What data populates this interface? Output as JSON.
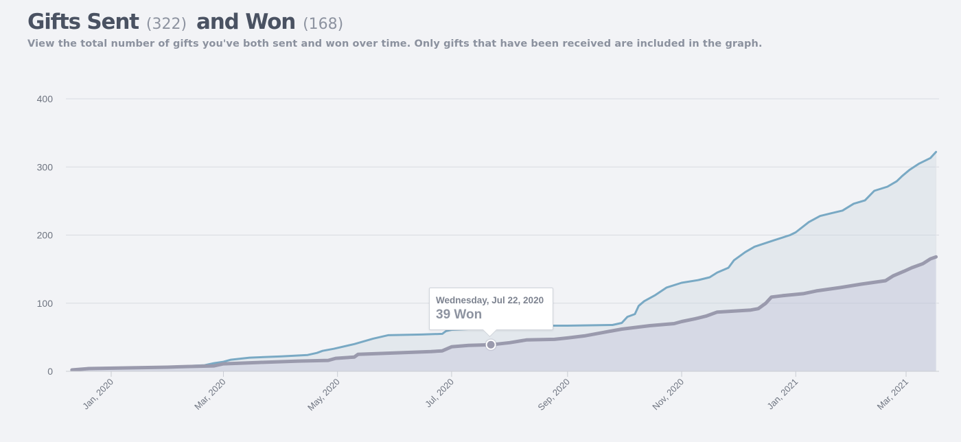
{
  "header": {
    "title_sent": "Gifts Sent",
    "sent_count": "(322)",
    "title_won": "and Won",
    "won_count": "(168)",
    "subtitle": "View the total number of gifts you've both sent and won over time. Only gifts that have been received are included in the graph."
  },
  "tooltip": {
    "date": "Wednesday, Jul 22, 2020",
    "value": "39 Won",
    "x": "2020-07-22",
    "y": 39
  },
  "colors": {
    "sent": "#79a9c4",
    "won": "#9a9aad",
    "grid": "#d8dbe1",
    "axis": "#c9ccd3"
  },
  "chart_data": {
    "type": "area",
    "x_axis": "date",
    "ylim": [
      0,
      400
    ],
    "y_ticks": [
      0,
      100,
      200,
      300,
      400
    ],
    "x_tick_labels": [
      {
        "date": "2020-01-01",
        "label": "Jan, 2020"
      },
      {
        "date": "2020-03-01",
        "label": "Mar, 2020"
      },
      {
        "date": "2020-05-01",
        "label": "May, 2020"
      },
      {
        "date": "2020-07-01",
        "label": "Jul, 2020"
      },
      {
        "date": "2020-09-01",
        "label": "Sep, 2020"
      },
      {
        "date": "2020-11-01",
        "label": "Nov, 2020"
      },
      {
        "date": "2021-01-01",
        "label": "Jan, 2021"
      },
      {
        "date": "2021-03-01",
        "label": "Mar, 2021"
      }
    ],
    "grid": true,
    "series": [
      {
        "key": "sent",
        "points": [
          [
            "2019-12-11",
            2
          ],
          [
            "2019-12-20",
            4
          ],
          [
            "2020-01-10",
            5
          ],
          [
            "2020-01-31",
            6
          ],
          [
            "2020-02-05",
            7
          ],
          [
            "2020-02-20",
            9
          ],
          [
            "2020-02-25",
            12
          ],
          [
            "2020-03-01",
            14
          ],
          [
            "2020-03-05",
            17
          ],
          [
            "2020-03-15",
            20
          ],
          [
            "2020-04-01",
            22
          ],
          [
            "2020-04-15",
            24
          ],
          [
            "2020-04-20",
            27
          ],
          [
            "2020-04-23",
            30
          ],
          [
            "2020-04-29",
            33
          ],
          [
            "2020-05-10",
            40
          ],
          [
            "2020-05-20",
            48
          ],
          [
            "2020-05-28",
            53
          ],
          [
            "2020-06-15",
            54
          ],
          [
            "2020-06-26",
            55
          ],
          [
            "2020-06-28",
            59
          ],
          [
            "2020-07-01",
            61
          ],
          [
            "2020-07-10",
            62
          ],
          [
            "2020-07-22",
            63
          ],
          [
            "2020-08-05",
            66
          ],
          [
            "2020-08-15",
            67
          ],
          [
            "2020-09-01",
            67
          ],
          [
            "2020-09-25",
            68
          ],
          [
            "2020-09-30",
            71
          ],
          [
            "2020-10-03",
            80
          ],
          [
            "2020-10-07",
            84
          ],
          [
            "2020-10-09",
            96
          ],
          [
            "2020-10-12",
            103
          ],
          [
            "2020-10-18",
            112
          ],
          [
            "2020-10-24",
            123
          ],
          [
            "2020-11-01",
            130
          ],
          [
            "2020-11-10",
            134
          ],
          [
            "2020-11-16",
            138
          ],
          [
            "2020-11-20",
            145
          ],
          [
            "2020-11-26",
            152
          ],
          [
            "2020-11-29",
            163
          ],
          [
            "2020-12-05",
            175
          ],
          [
            "2020-12-10",
            183
          ],
          [
            "2020-12-20",
            192
          ],
          [
            "2020-12-29",
            200
          ],
          [
            "2021-01-01",
            204
          ],
          [
            "2021-01-08",
            219
          ],
          [
            "2021-01-14",
            228
          ],
          [
            "2021-01-20",
            232
          ],
          [
            "2021-01-26",
            236
          ],
          [
            "2021-01-29",
            241
          ],
          [
            "2021-02-01",
            246
          ],
          [
            "2021-02-07",
            251
          ],
          [
            "2021-02-12",
            265
          ],
          [
            "2021-02-19",
            271
          ],
          [
            "2021-02-24",
            279
          ],
          [
            "2021-02-27",
            287
          ],
          [
            "2021-03-03",
            296
          ],
          [
            "2021-03-08",
            305
          ],
          [
            "2021-03-14",
            313
          ],
          [
            "2021-03-17",
            322
          ]
        ]
      },
      {
        "key": "won",
        "points": [
          [
            "2019-12-11",
            2
          ],
          [
            "2019-12-20",
            4
          ],
          [
            "2020-01-10",
            5
          ],
          [
            "2020-01-31",
            6
          ],
          [
            "2020-02-10",
            7
          ],
          [
            "2020-02-25",
            8
          ],
          [
            "2020-03-01",
            11
          ],
          [
            "2020-03-20",
            13
          ],
          [
            "2020-04-10",
            15
          ],
          [
            "2020-04-26",
            16
          ],
          [
            "2020-04-30",
            19
          ],
          [
            "2020-05-10",
            21
          ],
          [
            "2020-05-12",
            25
          ],
          [
            "2020-06-20",
            29
          ],
          [
            "2020-06-26",
            30
          ],
          [
            "2020-07-01",
            36
          ],
          [
            "2020-07-10",
            38
          ],
          [
            "2020-07-22",
            39
          ],
          [
            "2020-08-01",
            42
          ],
          [
            "2020-08-10",
            46
          ],
          [
            "2020-08-25",
            47
          ],
          [
            "2020-09-01",
            49
          ],
          [
            "2020-09-10",
            52
          ],
          [
            "2020-09-20",
            57
          ],
          [
            "2020-09-30",
            62
          ],
          [
            "2020-10-15",
            67
          ],
          [
            "2020-10-28",
            70
          ],
          [
            "2020-11-01",
            73
          ],
          [
            "2020-11-08",
            77
          ],
          [
            "2020-11-14",
            81
          ],
          [
            "2020-11-20",
            87
          ],
          [
            "2020-12-08",
            90
          ],
          [
            "2020-12-12",
            92
          ],
          [
            "2020-12-16",
            100
          ],
          [
            "2020-12-19",
            109
          ],
          [
            "2020-12-25",
            111
          ],
          [
            "2021-01-05",
            114
          ],
          [
            "2021-01-12",
            118
          ],
          [
            "2021-01-25",
            123
          ],
          [
            "2021-02-05",
            128
          ],
          [
            "2021-02-18",
            133
          ],
          [
            "2021-02-22",
            140
          ],
          [
            "2021-02-28",
            147
          ],
          [
            "2021-03-04",
            152
          ],
          [
            "2021-03-10",
            158
          ],
          [
            "2021-03-14",
            165
          ],
          [
            "2021-03-17",
            168
          ]
        ]
      }
    ]
  }
}
